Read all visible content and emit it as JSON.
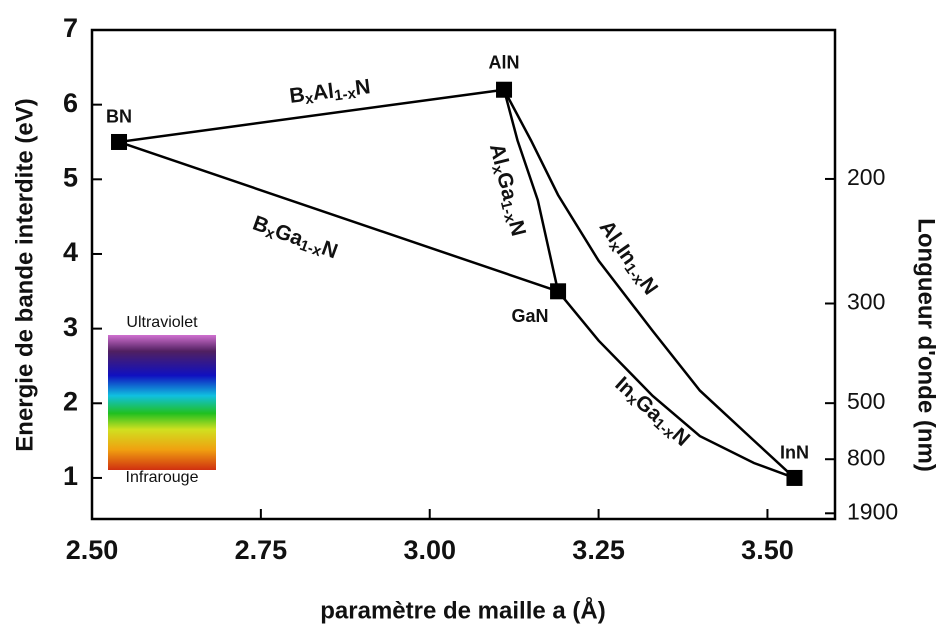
{
  "chart_data": {
    "type": "line",
    "xlabel": "paramètre de maille a (Å)",
    "ylabel": "Energie de bande interdite (eV)",
    "y2label": "Longueur d'onde (nm)",
    "xlim": [
      2.5,
      3.6
    ],
    "xticks": [
      {
        "value": 2.5,
        "label": "2.50"
      },
      {
        "value": 2.75,
        "label": "2.75"
      },
      {
        "value": 3.0,
        "label": "3.00"
      },
      {
        "value": 3.25,
        "label": "3.25"
      },
      {
        "value": 3.5,
        "label": "3.50"
      }
    ],
    "ylim": [
      0.45,
      7
    ],
    "yticks": [
      1,
      2,
      3,
      4,
      5,
      6,
      7
    ],
    "y2lim": [
      143,
      2222
    ],
    "y2scale": "reciprocal",
    "y2ticks": [
      200,
      300,
      500,
      800,
      1900
    ],
    "color": "#000000",
    "points": {
      "labels": [
        "BN",
        "AlN",
        "GaN",
        "InN"
      ],
      "x": [
        2.54,
        3.11,
        3.19,
        3.54
      ],
      "y": [
        5.5,
        6.2,
        3.5,
        1.0
      ]
    },
    "lines": [
      {
        "label": [
          "B",
          "x",
          "Al",
          "1-x",
          "N"
        ],
        "x": [
          2.54,
          3.11
        ],
        "y": [
          5.5,
          6.2
        ]
      },
      {
        "label": [
          "B",
          "x",
          "Ga",
          "1-x",
          "N"
        ],
        "x": [
          2.54,
          3.19
        ],
        "y": [
          5.5,
          3.5
        ]
      },
      {
        "label": [
          "Al",
          "x",
          "Ga",
          "1-x",
          "N"
        ],
        "x": [
          3.11,
          3.13,
          3.16,
          3.19
        ],
        "y": [
          6.2,
          5.52,
          4.72,
          3.5
        ]
      },
      {
        "label": [
          "Al",
          "x",
          "In",
          "1-x",
          "N"
        ],
        "x": [
          3.11,
          3.15,
          3.19,
          3.25,
          3.33,
          3.4,
          3.48,
          3.54
        ],
        "y": [
          6.2,
          5.52,
          4.79,
          3.91,
          2.97,
          2.17,
          1.5,
          1.0
        ]
      },
      {
        "label": [
          "In",
          "x",
          "Ga",
          "1-x",
          "N"
        ],
        "x": [
          3.19,
          3.25,
          3.33,
          3.4,
          3.48,
          3.54
        ],
        "y": [
          3.5,
          2.84,
          2.1,
          1.56,
          1.2,
          1.0
        ]
      }
    ],
    "inset_labels": [
      "Ultraviolet",
      "Infrarouge"
    ]
  }
}
